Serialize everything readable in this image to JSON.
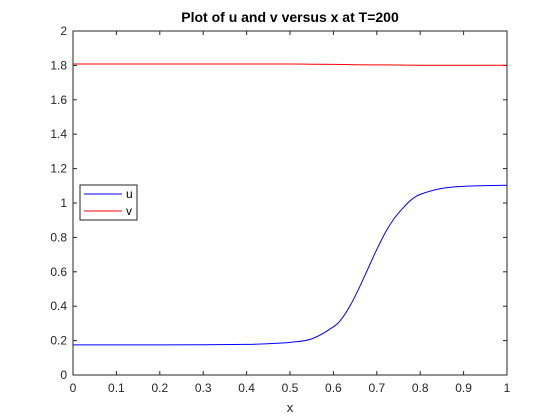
{
  "chart_data": {
    "type": "line",
    "title": "Plot of u and v versus x at T=200",
    "xlabel": "x",
    "ylabel": "",
    "xlim": [
      0,
      1
    ],
    "ylim": [
      0,
      2
    ],
    "x_ticks": [
      "0",
      "0.1",
      "0.2",
      "0.3",
      "0.4",
      "0.5",
      "0.6",
      "0.7",
      "0.8",
      "0.9",
      "1"
    ],
    "y_ticks": [
      "0",
      "0.2",
      "0.4",
      "0.6",
      "0.8",
      "1",
      "1.2",
      "1.4",
      "1.6",
      "1.8",
      "2"
    ],
    "grid": false,
    "legend_position": "left",
    "series": [
      {
        "name": "u",
        "color": "#0000ff",
        "x": [
          0,
          0.1,
          0.2,
          0.3,
          0.4,
          0.45,
          0.5,
          0.55,
          0.6,
          0.62,
          0.64,
          0.66,
          0.68,
          0.7,
          0.72,
          0.74,
          0.76,
          0.78,
          0.8,
          0.85,
          0.9,
          0.95,
          1.0
        ],
        "y": [
          0.175,
          0.175,
          0.175,
          0.176,
          0.178,
          0.182,
          0.19,
          0.21,
          0.28,
          0.33,
          0.41,
          0.51,
          0.62,
          0.73,
          0.83,
          0.91,
          0.97,
          1.02,
          1.05,
          1.085,
          1.097,
          1.101,
          1.103
        ]
      },
      {
        "name": "v",
        "color": "#ff0000",
        "x": [
          0,
          0.1,
          0.2,
          0.3,
          0.4,
          0.5,
          0.55,
          0.6,
          0.65,
          0.7,
          0.75,
          0.8,
          0.9,
          1.0
        ],
        "y": [
          1.808,
          1.808,
          1.808,
          1.808,
          1.808,
          1.808,
          1.807,
          1.806,
          1.804,
          1.803,
          1.802,
          1.801,
          1.801,
          1.801
        ]
      }
    ]
  }
}
